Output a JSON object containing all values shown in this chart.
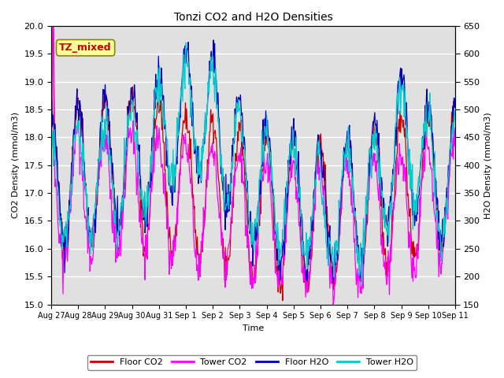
{
  "title": "Tonzi CO2 and H2O Densities",
  "xlabel": "Time",
  "ylabel_left": "CO2 Density (mmol/m3)",
  "ylabel_right": "H2O Density (mmol/m3)",
  "annotation": "TZ_mixed",
  "annotation_color": "#cc0000",
  "annotation_bg": "#ffff99",
  "annotation_border": "#888800",
  "ylim_left": [
    15.0,
    20.0
  ],
  "ylim_right": [
    150,
    650
  ],
  "background_color": "#e0e0e0",
  "floor_co2_color": "#cc0000",
  "tower_co2_color": "#ff00ff",
  "floor_h2o_color": "#0000bb",
  "tower_h2o_color": "#00cccc",
  "legend_entries": [
    "Floor CO2",
    "Tower CO2",
    "Floor H2O",
    "Tower H2O"
  ],
  "xtick_labels": [
    "Aug 27",
    "Aug 28",
    "Aug 29",
    "Aug 30",
    "Aug 31",
    "Sep 1",
    "Sep 2",
    "Sep 3",
    "Sep 4",
    "Sep 5",
    "Sep 6",
    "Sep 7",
    "Sep 8",
    "Sep 9",
    "Sep 10",
    "Sep 11"
  ],
  "n_points": 720,
  "seed": 42
}
